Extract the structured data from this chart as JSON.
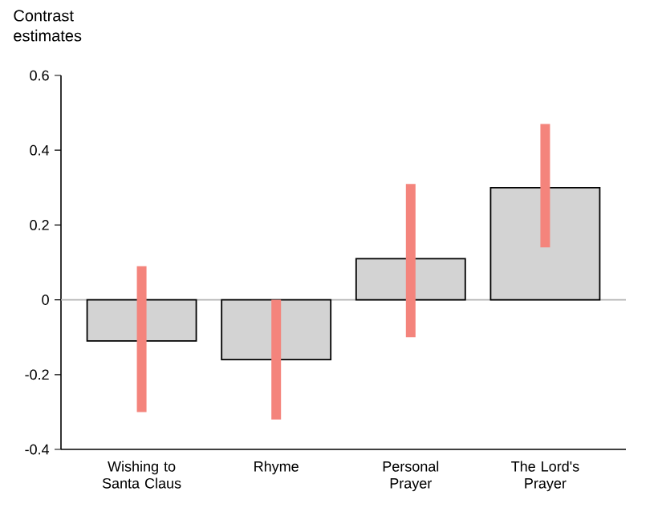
{
  "chart_data": {
    "type": "bar",
    "ylabel": "Contrast estimates",
    "categories": [
      "Wishing to Santa Claus",
      "Rhyme",
      "Personal Prayer",
      "The Lord's Prayer"
    ],
    "values": [
      -0.11,
      -0.16,
      0.11,
      0.3
    ],
    "errors": [
      [
        -0.3,
        0.09
      ],
      [
        -0.32,
        0.0
      ],
      [
        -0.1,
        0.31
      ],
      [
        0.14,
        0.47
      ]
    ],
    "color": "#d3d3d3",
    "ylim": [
      -0.4,
      0.6
    ],
    "yticks": [
      -0.4,
      -0.2,
      0,
      0.2,
      0.4,
      0.6
    ],
    "ref_lines": [
      {
        "axis": "y",
        "value": 0,
        "color": "#b4b4b4"
      }
    ]
  }
}
